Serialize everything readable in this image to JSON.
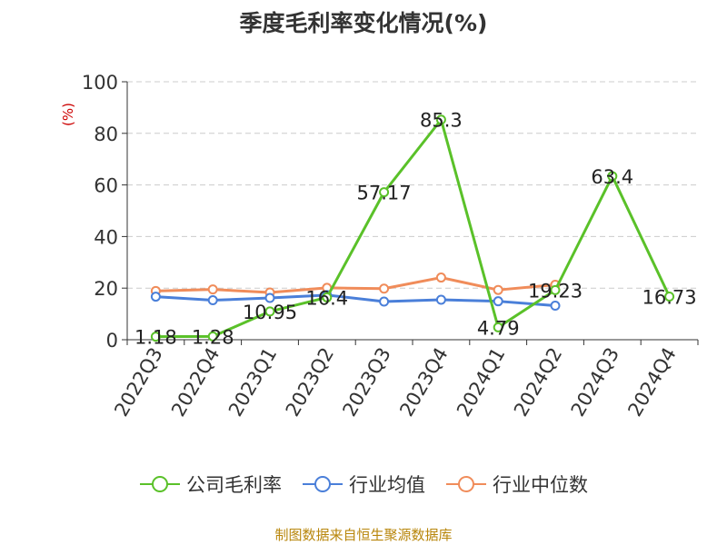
{
  "chart_data": {
    "type": "line",
    "title": "季度毛利率变化情况(%)",
    "ylabel": "(%)",
    "ylim": [
      0,
      100
    ],
    "yticks": [
      0,
      20,
      40,
      60,
      80,
      100
    ],
    "categories": [
      "2022Q3",
      "2022Q4",
      "2023Q1",
      "2023Q2",
      "2023Q3",
      "2023Q4",
      "2024Q1",
      "2024Q2",
      "2024Q3",
      "2024Q4"
    ],
    "grid": true,
    "legend_position": "bottom",
    "series": [
      {
        "name": "公司毛利率",
        "color": "#5ac129",
        "labeled": true,
        "values": [
          1.18,
          1.28,
          10.95,
          16.4,
          57.17,
          85.3,
          4.79,
          19.23,
          63.4,
          16.73
        ]
      },
      {
        "name": "行业均值",
        "color": "#4a7fd9",
        "labeled": false,
        "values": [
          16.7,
          15.3,
          16.2,
          17.3,
          14.8,
          15.5,
          14.9,
          13.2,
          null,
          null
        ]
      },
      {
        "name": "行业中位数",
        "color": "#f08c5a",
        "labeled": false,
        "values": [
          18.9,
          19.5,
          18.3,
          20.1,
          19.8,
          24.1,
          19.3,
          21.3,
          null,
          null
        ]
      }
    ]
  },
  "source": "制图数据来自恒生聚源数据库"
}
